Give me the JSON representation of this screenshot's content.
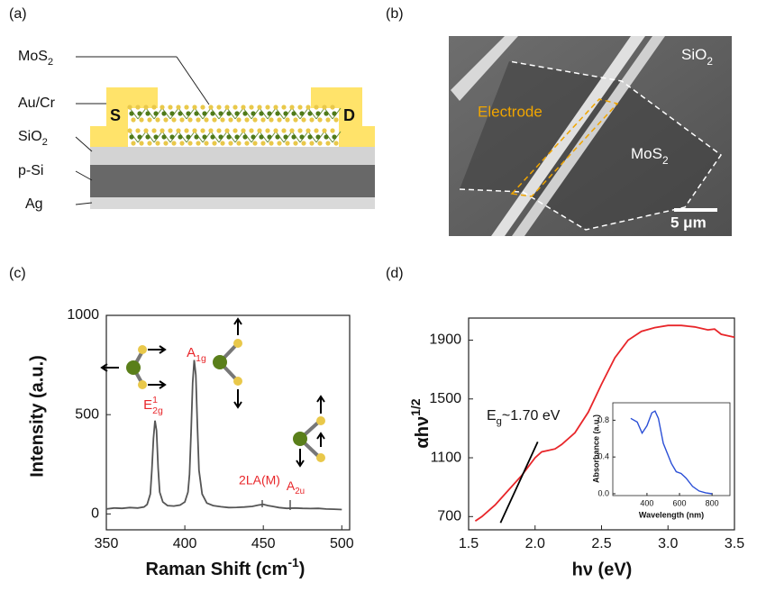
{
  "panel_labels": [
    "(a)",
    "(b)",
    "(c)",
    "(d)"
  ],
  "device": {
    "layers": [
      {
        "text": "MoS",
        "sub": "2"
      },
      "Au/Cr",
      {
        "text": "SiO",
        "sub": "2"
      },
      "p-Si",
      "Ag"
    ],
    "source": "S",
    "drain": "D"
  },
  "micrograph": {
    "substrate": {
      "text": "SiO",
      "sub": "2"
    },
    "electrode": "Electrode",
    "flake": {
      "text": "MoS",
      "sub": "2"
    },
    "scale_bar": "5 μm"
  },
  "chart_data": [
    {
      "type": "line",
      "x_label": {
        "text": "Raman Shift (cm",
        "sup": "-1",
        "tail": ")"
      },
      "y_label": "Intensity (a.u.)",
      "series": [
        {
          "color": "#555555",
          "x": [
            350,
            355,
            360,
            365,
            370,
            374,
            376,
            378,
            379,
            380,
            381,
            382,
            383,
            384,
            386,
            389,
            393,
            397,
            400,
            402,
            403,
            404,
            405,
            406,
            407,
            408,
            409,
            411,
            414,
            418,
            423,
            428,
            433,
            438,
            443,
            447,
            450,
            453,
            456,
            460,
            465,
            470,
            475,
            480,
            485,
            490,
            495,
            500
          ],
          "values": [
            25,
            30,
            28,
            32,
            30,
            35,
            48,
            100,
            220,
            380,
            470,
            420,
            230,
            110,
            60,
            42,
            40,
            45,
            60,
            110,
            200,
            420,
            660,
            775,
            700,
            450,
            220,
            100,
            55,
            42,
            36,
            32,
            33,
            35,
            38,
            45,
            48,
            42,
            38,
            32,
            28,
            30,
            28,
            27,
            28,
            25,
            24,
            22
          ]
        }
      ],
      "xlim": [
        350,
        505
      ],
      "ylim": [
        -80,
        1000
      ],
      "xticks": [
        350,
        400,
        450,
        500
      ],
      "yticks": [
        0,
        500,
        1000
      ],
      "annotations": [
        {
          "text": "E",
          "sup": "1",
          "sub": "2g"
        },
        {
          "text": "A",
          "sub": "1g"
        },
        "2LA(M)",
        {
          "text": "A",
          "sub": "2u"
        }
      ],
      "annotation_color": "#e8262a"
    },
    {
      "type": "line",
      "x_label": "hν (eV)",
      "y_label": {
        "text": "αhν",
        "sup": "1/2"
      },
      "series": [
        {
          "color": "#e8262a",
          "x": [
            1.55,
            1.6,
            1.7,
            1.8,
            1.9,
            2.0,
            2.05,
            2.1,
            2.15,
            2.2,
            2.3,
            2.4,
            2.5,
            2.6,
            2.7,
            2.8,
            2.9,
            3.0,
            3.1,
            3.2,
            3.3,
            3.35,
            3.4,
            3.45,
            3.5
          ],
          "values": [
            670,
            700,
            780,
            880,
            980,
            1100,
            1140,
            1150,
            1160,
            1190,
            1270,
            1410,
            1600,
            1780,
            1900,
            1960,
            1985,
            2000,
            2000,
            1990,
            1970,
            1975,
            1940,
            1930,
            1920
          ]
        },
        {
          "color": "#000000",
          "x": [
            1.74,
            2.02
          ],
          "values": [
            657,
            1208
          ]
        }
      ],
      "xlim": [
        1.5,
        3.5
      ],
      "ylim": [
        610,
        2050
      ],
      "xticks": [
        1.5,
        {
          "value": 2,
          "label": "2.0"
        },
        2.5,
        {
          "value": 3,
          "label": "3.0"
        },
        3.5
      ],
      "yticks": [
        700,
        1100,
        1500,
        1900
      ],
      "annotations": [
        {
          "text": "E",
          "sub": "g",
          "tail": "~1.70 eV"
        }
      ]
    },
    {
      "type": "line",
      "x_label": "Wavelength (nm)",
      "y_label": "Absorbance (a.u.)",
      "series": [
        {
          "color": "#2b4fd6",
          "x": [
            300,
            340,
            370,
            400,
            430,
            450,
            470,
            500,
            550,
            580,
            610,
            640,
            680,
            720,
            760,
            800
          ],
          "values": [
            0.82,
            0.78,
            0.66,
            0.74,
            0.88,
            0.9,
            0.82,
            0.55,
            0.33,
            0.24,
            0.22,
            0.17,
            0.08,
            0.03,
            0.01,
            0.0
          ]
        }
      ],
      "xlim": [
        190,
        910
      ],
      "ylim": [
        -0.02,
        0.99
      ],
      "xticks": [
        400,
        600,
        800
      ],
      "yticks": [
        {
          "value": 0,
          "label": "0.0"
        },
        0.4,
        0.8
      ]
    }
  ]
}
